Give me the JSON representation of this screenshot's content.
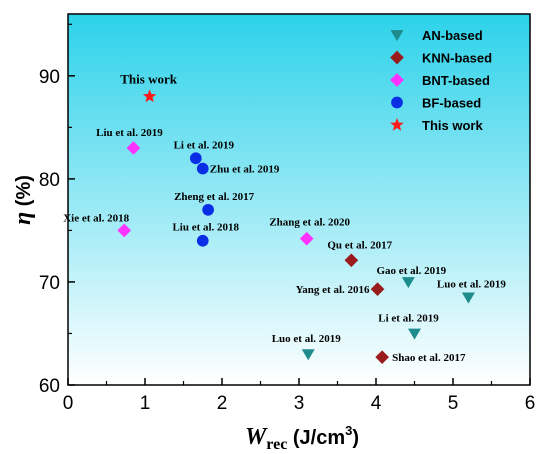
{
  "chart_data": {
    "type": "scatter",
    "title": "",
    "xlabel": {
      "main": "W",
      "sub": "rec",
      "unit_pre": " (J/cm",
      "unit_sup": "3",
      "unit_post": ")"
    },
    "ylabel": {
      "symbol": "η",
      "unit": " (%)"
    },
    "xlim": [
      0,
      6
    ],
    "ylim": [
      60,
      96
    ],
    "xticks": [
      "0",
      "1",
      "2",
      "3",
      "4",
      "5",
      "6"
    ],
    "yticks": [
      "60",
      "70",
      "80",
      "90"
    ],
    "legend_position": "top-right",
    "background_gradient": [
      "#2cd2ea",
      "#ffffff"
    ],
    "series": [
      {
        "name": "AN-based",
        "marker": "triangle-down",
        "color": "#1e8c8c",
        "points": [
          {
            "x": 4.42,
            "y": 70.0,
            "label": "Gao et al. 2019"
          },
          {
            "x": 5.2,
            "y": 68.5,
            "label": "Luo et al. 2019"
          },
          {
            "x": 4.5,
            "y": 65.0,
            "label": "Li et al. 2019"
          },
          {
            "x": 3.12,
            "y": 63.0,
            "label": "Luo et al. 2019"
          }
        ]
      },
      {
        "name": "KNN-based",
        "marker": "diamond",
        "color": "#9a1b1b",
        "points": [
          {
            "x": 3.68,
            "y": 72.1,
            "label": "Qu et al. 2017"
          },
          {
            "x": 4.02,
            "y": 69.3,
            "label": "Yang et al. 2016"
          },
          {
            "x": 4.08,
            "y": 62.7,
            "label": "Shao et al. 2017"
          }
        ]
      },
      {
        "name": "BNT-based",
        "marker": "diamond",
        "color": "#ff33ff",
        "points": [
          {
            "x": 0.85,
            "y": 83.0,
            "label": "Liu et al. 2019"
          },
          {
            "x": 0.73,
            "y": 75.0,
            "label": "Xie et al. 2018"
          },
          {
            "x": 3.1,
            "y": 74.2,
            "label": "Zhang et al. 2020"
          }
        ]
      },
      {
        "name": "BF-based",
        "marker": "circle",
        "color": "#0a2ee6",
        "points": [
          {
            "x": 1.66,
            "y": 82.0,
            "label": "Li et al. 2019"
          },
          {
            "x": 1.75,
            "y": 81.0,
            "label": "Zhu et al. 2019"
          },
          {
            "x": 1.82,
            "y": 77.0,
            "label": "Zheng et al. 2017"
          },
          {
            "x": 1.75,
            "y": 74.0,
            "label": "Liu et al. 2018"
          }
        ]
      },
      {
        "name": "This work",
        "marker": "star",
        "color": "#ff1a1a",
        "points": [
          {
            "x": 1.06,
            "y": 88.0,
            "label": "This work"
          }
        ]
      }
    ]
  }
}
